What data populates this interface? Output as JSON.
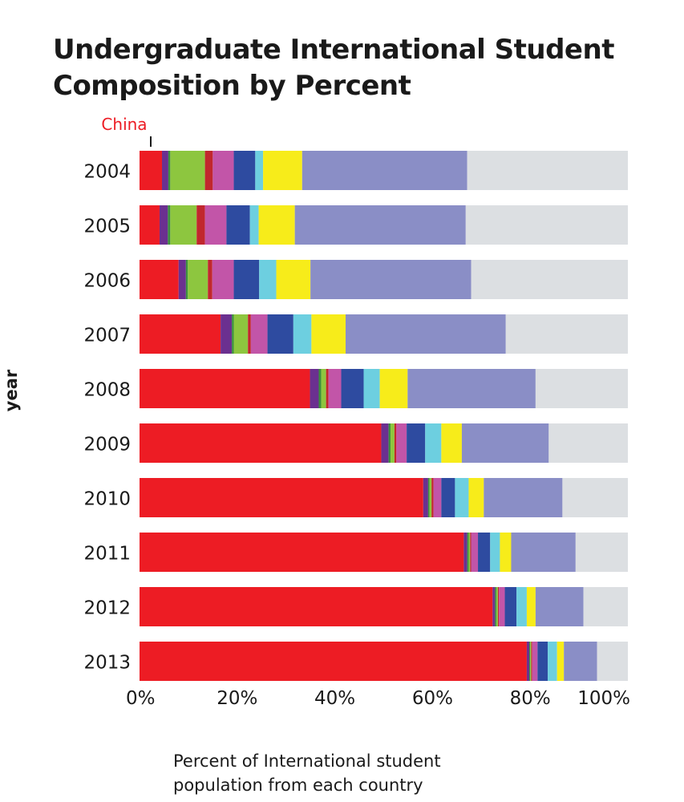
{
  "chart_data": {
    "type": "bar",
    "orientation": "horizontal",
    "stacked": true,
    "title_lines": [
      "Undergraduate International Student",
      "Composition by Percent"
    ],
    "xlabel_lines": [
      "Percent of International student",
      "population from each country"
    ],
    "ylabel": "year",
    "annotation": "China",
    "categories": [
      "2004",
      "2005",
      "2006",
      "2007",
      "2008",
      "2009",
      "2010",
      "2011",
      "2012",
      "2013"
    ],
    "x_ticks": [
      "0%",
      "20%",
      "40%",
      "60%",
      "80%",
      "100%"
    ],
    "xlim": [
      0,
      100
    ],
    "grid": false,
    "legend": "none",
    "series": [
      {
        "name": "China",
        "color": "#ed1c24",
        "values": [
          4.6,
          4.1,
          8.0,
          16.6,
          34.9,
          49.5,
          58.1,
          66.4,
          72.3,
          79.3
        ]
      },
      {
        "color": "#6b3090",
        "values": [
          1.3,
          1.7,
          1.5,
          2.3,
          1.8,
          1.5,
          1.0,
          0.7,
          0.5,
          0.5
        ]
      },
      {
        "color": "#3d8f3d",
        "values": [
          0.4,
          0.5,
          0.4,
          0.4,
          0.5,
          0.4,
          0.3,
          0.3,
          0.3,
          0.2
        ]
      },
      {
        "color": "#8dc63f",
        "values": [
          7.1,
          5.4,
          4.1,
          2.9,
          1.0,
          0.8,
          0.4,
          0.3,
          0.3,
          0.2
        ]
      },
      {
        "color": "#c1272d",
        "values": [
          1.6,
          1.7,
          0.9,
          0.6,
          0.5,
          0.4,
          0.4,
          0.2,
          0.2,
          0.2
        ]
      },
      {
        "color": "#c255a8",
        "values": [
          4.3,
          4.4,
          4.4,
          3.4,
          2.6,
          2.1,
          1.6,
          1.4,
          1.2,
          1.1
        ]
      },
      {
        "color": "#2e4ba0",
        "values": [
          4.4,
          4.8,
          5.2,
          5.3,
          4.6,
          3.8,
          2.8,
          2.5,
          2.4,
          2.1
        ]
      },
      {
        "color": "#6dcfe0",
        "values": [
          1.6,
          1.8,
          3.5,
          3.7,
          3.3,
          3.3,
          2.8,
          2.0,
          2.1,
          1.9
        ]
      },
      {
        "color": "#f7ec1a",
        "values": [
          8.0,
          7.4,
          7.0,
          7.0,
          5.7,
          4.2,
          3.1,
          2.3,
          1.8,
          1.4
        ]
      },
      {
        "color": "#8a8ec6",
        "values": [
          33.8,
          35.0,
          32.9,
          32.8,
          26.2,
          17.8,
          16.1,
          13.2,
          9.8,
          6.8
        ]
      },
      {
        "color": "#dcdfe2",
        "values": [
          32.9,
          33.2,
          32.1,
          25.0,
          18.9,
          16.2,
          13.4,
          10.7,
          9.1,
          6.3
        ]
      }
    ]
  }
}
